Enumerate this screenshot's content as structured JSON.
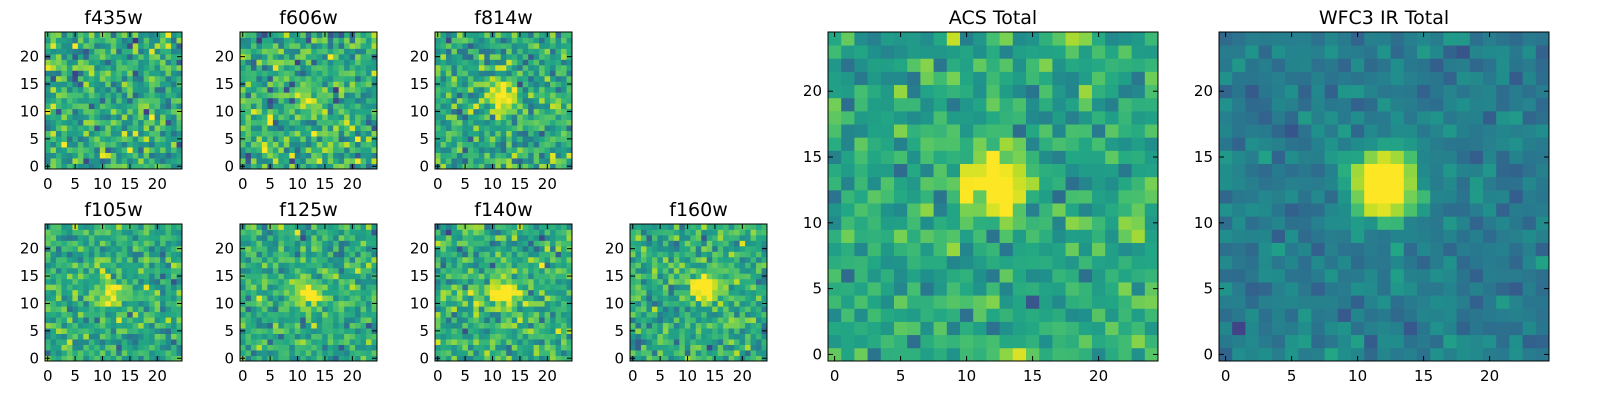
{
  "figure": {
    "description_free": true
  },
  "chart_data": [
    {
      "type": "heatmap",
      "title": "f435w",
      "x_ticks": [
        0,
        5,
        10,
        15,
        20
      ],
      "y_ticks": [
        0,
        5,
        10,
        15,
        20
      ],
      "xlim": [
        -0.5,
        24.5
      ],
      "ylim": [
        -0.5,
        24.5
      ],
      "grid_size": 25,
      "colormap": "viridis",
      "bright_spots": [],
      "noise": 0.55,
      "seed": 11
    },
    {
      "type": "heatmap",
      "title": "f606w",
      "x_ticks": [
        0,
        5,
        10,
        15,
        20
      ],
      "y_ticks": [
        0,
        5,
        10,
        15,
        20
      ],
      "xlim": [
        -0.5,
        24.5
      ],
      "ylim": [
        -0.5,
        24.5
      ],
      "grid_size": 25,
      "colormap": "viridis",
      "bright_spots": [
        [
          12,
          12,
          0.25
        ]
      ],
      "noise": 0.55,
      "seed": 23
    },
    {
      "type": "heatmap",
      "title": "f814w",
      "x_ticks": [
        0,
        5,
        10,
        15,
        20
      ],
      "y_ticks": [
        0,
        5,
        10,
        15,
        20
      ],
      "xlim": [
        -0.5,
        24.5
      ],
      "ylim": [
        -0.5,
        24.5
      ],
      "grid_size": 25,
      "colormap": "viridis",
      "bright_spots": [
        [
          12,
          13,
          0.5
        ]
      ],
      "noise": 0.5,
      "seed": 37
    },
    {
      "type": "heatmap",
      "title": "f105w",
      "x_ticks": [
        0,
        5,
        10,
        15,
        20
      ],
      "y_ticks": [
        0,
        5,
        10,
        15,
        20
      ],
      "xlim": [
        -0.5,
        24.5
      ],
      "ylim": [
        -0.5,
        24.5
      ],
      "grid_size": 25,
      "colormap": "viridis",
      "bright_spots": [
        [
          12,
          12,
          0.45
        ]
      ],
      "noise": 0.45,
      "seed": 41
    },
    {
      "type": "heatmap",
      "title": "f125w",
      "x_ticks": [
        0,
        5,
        10,
        15,
        20
      ],
      "y_ticks": [
        0,
        5,
        10,
        15,
        20
      ],
      "xlim": [
        -0.5,
        24.5
      ],
      "ylim": [
        -0.5,
        24.5
      ],
      "grid_size": 25,
      "colormap": "viridis",
      "bright_spots": [
        [
          12,
          12,
          0.5
        ]
      ],
      "noise": 0.45,
      "seed": 53
    },
    {
      "type": "heatmap",
      "title": "f140w",
      "x_ticks": [
        0,
        5,
        10,
        15,
        20
      ],
      "y_ticks": [
        0,
        5,
        10,
        15,
        20
      ],
      "xlim": [
        -0.5,
        24.5
      ],
      "ylim": [
        -0.5,
        24.5
      ],
      "grid_size": 25,
      "colormap": "viridis",
      "bright_spots": [
        [
          12,
          12,
          0.55
        ]
      ],
      "noise": 0.45,
      "seed": 67
    },
    {
      "type": "heatmap",
      "title": "f160w",
      "x_ticks": [
        0,
        5,
        10,
        15,
        20
      ],
      "y_ticks": [
        0,
        5,
        10,
        15,
        20
      ],
      "xlim": [
        -0.5,
        24.5
      ],
      "ylim": [
        -0.5,
        24.5
      ],
      "grid_size": 25,
      "colormap": "viridis",
      "bright_spots": [
        [
          13,
          13,
          0.7
        ]
      ],
      "noise": 0.45,
      "seed": 79
    },
    {
      "type": "heatmap",
      "title": "ACS Total",
      "x_ticks": [
        0,
        5,
        10,
        15,
        20
      ],
      "y_ticks": [
        0,
        5,
        10,
        15,
        20
      ],
      "xlim": [
        -0.5,
        24.5
      ],
      "ylim": [
        -0.5,
        24.5
      ],
      "grid_size": 25,
      "colormap": "viridis",
      "bright_spots": [
        [
          12,
          13,
          0.6
        ]
      ],
      "noise": 0.4,
      "seed": 97,
      "bias": 0.6
    },
    {
      "type": "heatmap",
      "title": "WFC3 IR Total",
      "x_ticks": [
        0,
        5,
        10,
        15,
        20
      ],
      "y_ticks": [
        0,
        5,
        10,
        15,
        20
      ],
      "xlim": [
        -0.5,
        24.5
      ],
      "ylim": [
        -0.5,
        24.5
      ],
      "grid_size": 25,
      "colormap": "viridis",
      "bright_spots": [
        [
          12,
          13,
          1.0
        ]
      ],
      "noise": 0.22,
      "seed": 113,
      "bias": 0.42
    }
  ]
}
